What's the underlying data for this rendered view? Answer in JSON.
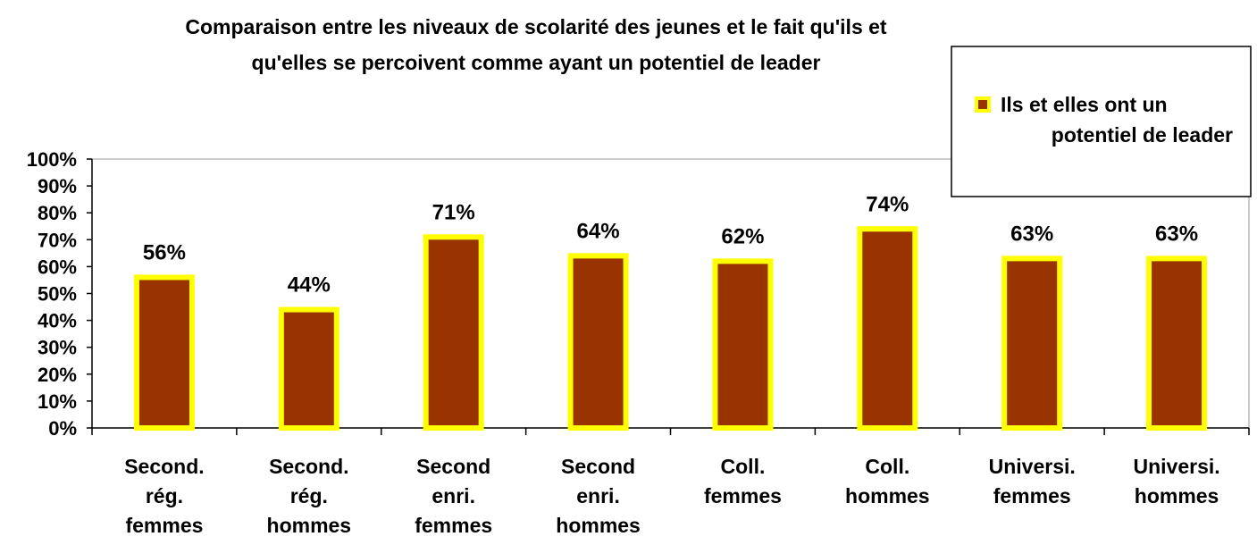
{
  "chart_data": {
    "type": "bar",
    "title": [
      "Comparaison entre les niveaux de scolarité des jeunes et le fait qu'ils et",
      "qu'elles se percoivent comme ayant un potentiel de  leader"
    ],
    "categories": [
      "Second.\nrég.\nfemmes",
      "Second.\nrég.\nhommes",
      "Second\nenri.\nfemmes",
      "Second\nenri.\nhommes",
      "Coll.\nfemmes",
      "Coll.\nhommes",
      "Universi.\nfemmes",
      "Universi.\nhommes"
    ],
    "series": [
      {
        "name": "Ils et elles ont un\npotentiel de leader",
        "color": "#993300",
        "edge_color": "#ffff00",
        "values": [
          56,
          44,
          71,
          64,
          62,
          74,
          63,
          63
        ],
        "value_labels": [
          "56%",
          "44%",
          "71%",
          "64%",
          "62%",
          "74%",
          "63%",
          "63%"
        ]
      }
    ],
    "ylim": [
      0,
      100
    ],
    "yticks": [
      {
        "value": 0,
        "label": "0%"
      },
      {
        "value": 10,
        "label": "10%"
      },
      {
        "value": 20,
        "label": "20%"
      },
      {
        "value": 30,
        "label": "30%"
      },
      {
        "value": 40,
        "label": "40%"
      },
      {
        "value": 50,
        "label": "50%"
      },
      {
        "value": 60,
        "label": "60%"
      },
      {
        "value": 70,
        "label": "70%"
      },
      {
        "value": 80,
        "label": "80%"
      },
      {
        "value": 90,
        "label": "90%"
      },
      {
        "value": 100,
        "label": "100%"
      }
    ],
    "legend": "top-right"
  }
}
